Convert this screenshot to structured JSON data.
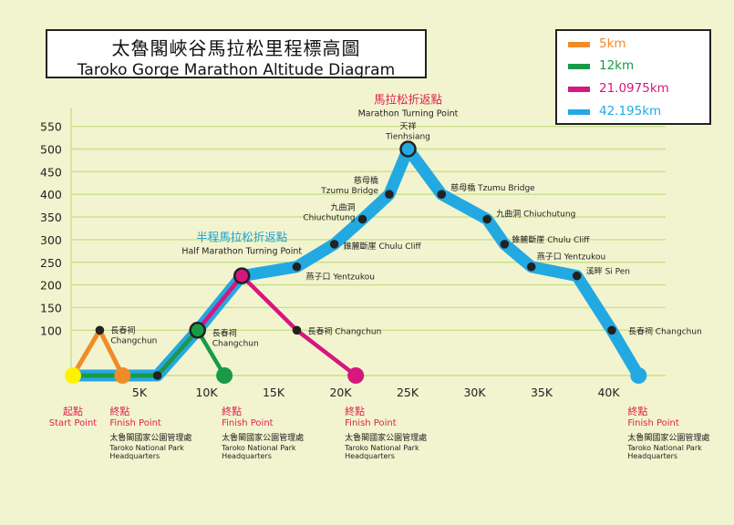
{
  "header": {
    "title_zh": "太魯閣峽谷馬拉松里程標高圖",
    "title_en": "Taroko Gorge Marathon Altitude Diagram"
  },
  "colors": {
    "background": "#f2f4cf",
    "grid": "#c8e08a",
    "full_marathon": "#23a9e1",
    "half_marathon": "#d6177f",
    "12km": "#1a9a46",
    "5km": "#f08c28",
    "start_point": "#fff200",
    "marker": "#222222",
    "label_red": "#e31e4b",
    "label_blue": "#1aa1d8"
  },
  "legend": [
    {
      "label": "5km",
      "color": "#f08c28"
    },
    {
      "label": "12km",
      "color": "#1a9a46"
    },
    {
      "label": "21.0975km",
      "color": "#d6177f"
    },
    {
      "label": "42.195km",
      "color": "#23a9e1"
    }
  ],
  "chart_data": {
    "type": "line",
    "title": "太魯閣峽谷馬拉松里程標高圖 Taroko Gorge Marathon Altitude Diagram",
    "xlabel": "",
    "ylabel": "",
    "x_ticks": [
      5,
      10,
      15,
      20,
      25,
      30,
      35,
      40
    ],
    "x_tick_labels": [
      "5K",
      "10K",
      "15K",
      "20K",
      "25K",
      "30K",
      "35K",
      "40K"
    ],
    "y_ticks": [
      100,
      150,
      200,
      250,
      300,
      350,
      400,
      450,
      500,
      550
    ],
    "y_tick_labels": [
      "100",
      "150",
      "200",
      "250",
      "300",
      "350",
      "400",
      "450",
      "500",
      "550"
    ],
    "xlim": [
      0,
      45
    ],
    "ylim": [
      0,
      550
    ],
    "grid": true,
    "legend_position": "top-right",
    "series": [
      {
        "name": "5km",
        "color": "#f08c28",
        "points": [
          [
            0,
            0
          ],
          [
            2,
            100
          ],
          [
            3.7,
            0
          ]
        ]
      },
      {
        "name": "12km",
        "color": "#1a9a46",
        "points": [
          [
            0,
            0
          ],
          [
            6.3,
            0
          ],
          [
            9.3,
            100
          ],
          [
            11.3,
            0
          ]
        ]
      },
      {
        "name": "21.0975km",
        "color": "#d6177f",
        "points": [
          [
            0,
            0
          ],
          [
            6.3,
            0
          ],
          [
            9.3,
            100
          ],
          [
            12.6,
            220
          ],
          [
            16.7,
            100
          ],
          [
            21.1,
            0
          ]
        ]
      },
      {
        "name": "42.195km",
        "color": "#23a9e1",
        "points": [
          [
            0,
            0
          ],
          [
            6.3,
            0
          ],
          [
            9.3,
            100
          ],
          [
            12.6,
            220
          ],
          [
            16.7,
            240
          ],
          [
            19.5,
            290
          ],
          [
            21.6,
            345
          ],
          [
            23.6,
            400
          ],
          [
            25,
            500
          ],
          [
            27.5,
            400
          ],
          [
            30.9,
            345
          ],
          [
            32.2,
            290
          ],
          [
            34.2,
            240
          ],
          [
            37.6,
            220
          ],
          [
            40.2,
            100
          ],
          [
            42.2,
            0
          ]
        ]
      }
    ],
    "markers": [
      {
        "x": 2,
        "y": 100,
        "style": "dot"
      },
      {
        "x": 6.3,
        "y": 0,
        "style": "dot"
      },
      {
        "x": 9.3,
        "y": 100,
        "style": "ring",
        "ring": "#1a9a46"
      },
      {
        "x": 12.6,
        "y": 220,
        "style": "ring",
        "ring": "#d6177f"
      },
      {
        "x": 16.7,
        "y": 240,
        "style": "dot"
      },
      {
        "x": 16.7,
        "y": 100,
        "style": "dot"
      },
      {
        "x": 19.5,
        "y": 290,
        "style": "dot"
      },
      {
        "x": 21.6,
        "y": 345,
        "style": "dot"
      },
      {
        "x": 23.6,
        "y": 400,
        "style": "dot"
      },
      {
        "x": 25,
        "y": 500,
        "style": "ring",
        "ring": "#23a9e1"
      },
      {
        "x": 27.5,
        "y": 400,
        "style": "dot"
      },
      {
        "x": 30.9,
        "y": 345,
        "style": "dot"
      },
      {
        "x": 32.2,
        "y": 290,
        "style": "dot"
      },
      {
        "x": 34.2,
        "y": 240,
        "style": "dot"
      },
      {
        "x": 37.6,
        "y": 220,
        "style": "dot"
      },
      {
        "x": 40.2,
        "y": 100,
        "style": "dot"
      }
    ],
    "endpoints": [
      {
        "x": 0,
        "y": 0,
        "color": "#fff200"
      },
      {
        "x": 3.7,
        "y": 0,
        "color": "#f08c28"
      },
      {
        "x": 11.3,
        "y": 0,
        "color": "#1a9a46"
      },
      {
        "x": 21.1,
        "y": 0,
        "color": "#d6177f"
      },
      {
        "x": 42.2,
        "y": 0,
        "color": "#23a9e1"
      }
    ],
    "annotations": [
      {
        "name": "changchun-5k-label",
        "lines": [
          "長春祠",
          "Changchun"
        ],
        "x": 2,
        "y": 100,
        "align": "start",
        "dx": 12,
        "dy": 3,
        "color": "#222222"
      },
      {
        "name": "changchun-12k-label",
        "lines": [
          "長春祠",
          "Changchun"
        ],
        "x": 9.3,
        "y": 100,
        "align": "start",
        "dx": 16,
        "dy": 6,
        "color": "#222222"
      },
      {
        "name": "changchun-out-label",
        "lines": [
          "長春祠  Changchun"
        ],
        "x": 16.7,
        "y": 100,
        "align": "start",
        "dx": 12,
        "dy": 4,
        "color": "#222222"
      },
      {
        "name": "yentzukou-out-label",
        "lines": [
          "燕子口  Yentzukou"
        ],
        "x": 16.7,
        "y": 240,
        "align": "start",
        "dx": 10,
        "dy": 14,
        "color": "#222222"
      },
      {
        "name": "chulu-cliff-out-label",
        "lines": [
          "錐麓斷崖  Chulu Cliff"
        ],
        "x": 19.5,
        "y": 290,
        "align": "start",
        "dx": 10,
        "dy": 5,
        "color": "#222222"
      },
      {
        "name": "chiuchutung-out-label",
        "lines": [
          "九曲洞",
          "Chiuchutung"
        ],
        "x": 21.6,
        "y": 345,
        "align": "end",
        "dx": -8,
        "dy": -10,
        "color": "#222222"
      },
      {
        "name": "tzumu-bridge-out-label",
        "lines": [
          "慈母橋",
          "Tzumu Bridge"
        ],
        "x": 23.6,
        "y": 400,
        "align": "end",
        "dx": -12,
        "dy": -12,
        "color": "#222222"
      },
      {
        "name": "tienhsiang-label",
        "lines": [
          "天祥",
          "Tienhsiang"
        ],
        "x": 25,
        "y": 500,
        "align": "middle",
        "dx": 0,
        "dy": -22,
        "color": "#222222"
      },
      {
        "name": "tzumu-bridge-back-label",
        "lines": [
          "慈母橋  Tzumu Bridge"
        ],
        "x": 27.5,
        "y": 400,
        "align": "start",
        "dx": 10,
        "dy": -4,
        "color": "#222222"
      },
      {
        "name": "chiuchutung-back-label",
        "lines": [
          "九曲洞  Chiuchutung"
        ],
        "x": 30.9,
        "y": 345,
        "align": "start",
        "dx": 10,
        "dy": -3,
        "color": "#222222"
      },
      {
        "name": "chulu-cliff-back-label",
        "lines": [
          "錐麓斷崖  Chulu Cliff"
        ],
        "x": 32.2,
        "y": 290,
        "align": "start",
        "dx": 8,
        "dy": -2,
        "color": "#222222"
      },
      {
        "name": "yentzukou-back-label",
        "lines": [
          "燕子口  Yentzukou"
        ],
        "x": 34.2,
        "y": 240,
        "align": "start",
        "dx": 6,
        "dy": -8,
        "color": "#222222"
      },
      {
        "name": "sipen-label",
        "lines": [
          "溪畔  Si Pen"
        ],
        "x": 37.6,
        "y": 220,
        "align": "start",
        "dx": 10,
        "dy": -2,
        "color": "#222222"
      },
      {
        "name": "changchun-back-label",
        "lines": [
          "長春祠  Changchun"
        ],
        "x": 40.2,
        "y": 100,
        "align": "start",
        "dx": 18,
        "dy": 4,
        "color": "#222222"
      }
    ],
    "callouts": [
      {
        "name": "marathon-turning-point",
        "zh": "馬拉松折返點",
        "en": "Marathon Turning Point",
        "x": 25,
        "y": 500,
        "align": "middle",
        "dx": 0,
        "dy": -50,
        "zh_color": "#e31e4b"
      },
      {
        "name": "half-marathon-turning-point",
        "zh": "半程馬拉松折返點",
        "en": "Half Marathon Turning Point",
        "x": 12.6,
        "y": 220,
        "align": "middle",
        "dx": 0,
        "dy": -38,
        "zh_color": "#1aa1d8"
      }
    ],
    "finish_labels": [
      {
        "name": "start-point-label",
        "zh": "起點",
        "en": "Start Point",
        "x": 0,
        "align": "middle",
        "dx": 0,
        "org": false
      },
      {
        "name": "finish-5k-label",
        "zh": "終點",
        "en": "Finish Point",
        "x": 3.7,
        "align": "start",
        "dx": -14,
        "org": true
      },
      {
        "name": "finish-12k-label",
        "zh": "終點",
        "en": "Finish Point",
        "x": 11.3,
        "align": "start",
        "dx": -3,
        "org": true
      },
      {
        "name": "finish-half-label",
        "zh": "終點",
        "en": "Finish Point",
        "x": 21.1,
        "align": "start",
        "dx": -12,
        "org": true
      },
      {
        "name": "finish-full-label",
        "zh": "終點",
        "en": "Finish Point",
        "x": 42.2,
        "align": "start",
        "dx": -12,
        "org": true
      }
    ],
    "organizer": {
      "zh": "太魯閣國家公園管理處",
      "en_line1": "Taroko National Park",
      "en_line2": "Headquarters"
    }
  }
}
